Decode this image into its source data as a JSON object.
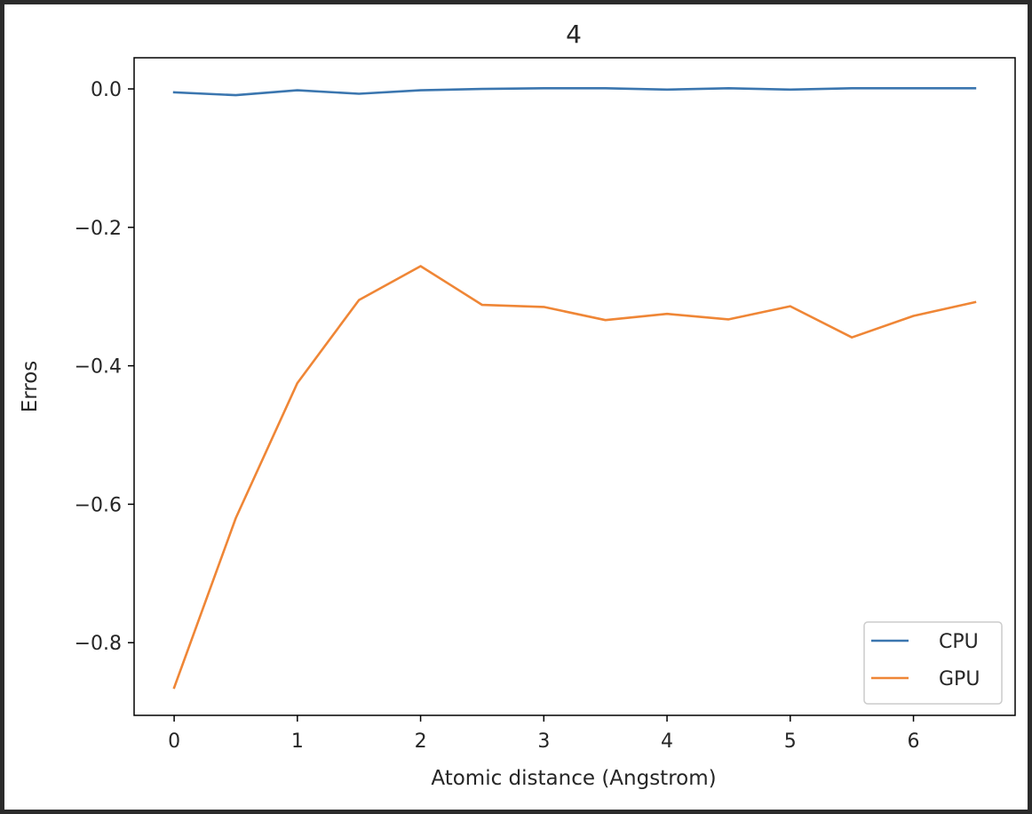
{
  "chart_data": {
    "type": "line",
    "title": "4",
    "xlabel": "Atomic distance (Angstrom)",
    "ylabel": "Erros",
    "xlim": [
      -0.325,
      6.825
    ],
    "ylim": [
      -0.905,
      0.045
    ],
    "xticks": [
      0,
      1,
      2,
      3,
      4,
      5,
      6
    ],
    "xtick_labels": [
      "0",
      "1",
      "2",
      "3",
      "4",
      "5",
      "6"
    ],
    "yticks": [
      0.0,
      -0.2,
      -0.4,
      -0.6,
      -0.8
    ],
    "ytick_labels": [
      "0.0",
      "−0.2",
      "−0.4",
      "−0.6",
      "−0.8"
    ],
    "grid": false,
    "legend_position": "lower-right",
    "x": [
      0,
      0.5,
      1,
      1.5,
      2,
      2.5,
      3,
      3.5,
      4,
      4.5,
      5,
      5.5,
      6,
      6.5
    ],
    "series": [
      {
        "name": "CPU",
        "color": "#3b76af",
        "values": [
          -0.005,
          -0.009,
          -0.002,
          -0.007,
          -0.002,
          0.0,
          0.001,
          0.001,
          -0.001,
          0.001,
          -0.001,
          0.001,
          0.001,
          0.001
        ]
      },
      {
        "name": "GPU",
        "color": "#ef8636",
        "values": [
          -0.865,
          -0.62,
          -0.425,
          -0.305,
          -0.256,
          -0.312,
          -0.315,
          -0.334,
          -0.325,
          -0.333,
          -0.314,
          -0.359,
          -0.328,
          -0.308
        ]
      }
    ]
  }
}
